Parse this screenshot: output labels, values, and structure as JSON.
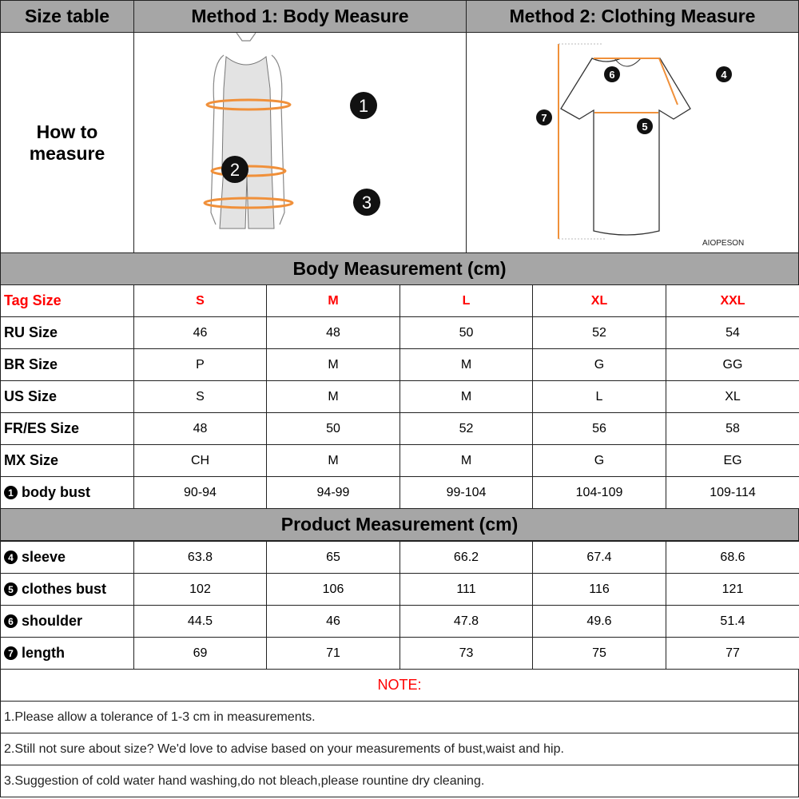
{
  "header": {
    "size_table": "Size table",
    "method1": "Method 1: Body  Measure",
    "method2": "Method 2: Clothing Measure"
  },
  "how_to_measure": "How to measure",
  "illustrations": {
    "body_markers": [
      "1",
      "2",
      "3"
    ],
    "clothing_markers": [
      "4",
      "5",
      "6",
      "7"
    ],
    "brand": "AIOPESON",
    "accent_color": "#f0903a"
  },
  "body_section": {
    "title": "Body Measurement (cm)",
    "tag_row": {
      "label": "Tag Size",
      "values": [
        "S",
        "M",
        "L",
        "XL",
        "XXL"
      ]
    },
    "rows": [
      {
        "label": "RU Size",
        "values": [
          "46",
          "48",
          "50",
          "52",
          "54"
        ]
      },
      {
        "label": "BR Size",
        "values": [
          "P",
          "M",
          "M",
          "G",
          "GG"
        ]
      },
      {
        "label": "US Size",
        "values": [
          "S",
          "M",
          "M",
          "L",
          "XL"
        ]
      },
      {
        "label": "FR/ES Size",
        "values": [
          "48",
          "50",
          "52",
          "56",
          "58"
        ]
      },
      {
        "label": "MX Size",
        "values": [
          "CH",
          "M",
          "M",
          "G",
          "EG"
        ]
      },
      {
        "marker": "1",
        "label": "body bust",
        "values": [
          "90-94",
          "94-99",
          "99-104",
          "104-109",
          "109-114"
        ]
      }
    ]
  },
  "product_section": {
    "title": "Product Measurement (cm)",
    "rows": [
      {
        "marker": "4",
        "label": "sleeve",
        "values": [
          "63.8",
          "65",
          "66.2",
          "67.4",
          "68.6"
        ]
      },
      {
        "marker": "5",
        "label": "clothes bust",
        "values": [
          "102",
          "106",
          "111",
          "116",
          "121"
        ]
      },
      {
        "marker": "6",
        "label": "shoulder",
        "values": [
          "44.5",
          "46",
          "47.8",
          "49.6",
          "51.4"
        ]
      },
      {
        "marker": "7",
        "label": "length",
        "values": [
          "69",
          "71",
          "73",
          "75",
          "77"
        ]
      }
    ]
  },
  "notes": {
    "title": "NOTE:",
    "items": [
      "1.Please allow a tolerance of 1-3 cm in measurements.",
      "2.Still not sure about size? We'd love to advise based on your measurements of bust,waist and hip.",
      "3.Suggestion of cold water hand washing,do not bleach,please rountine dry cleaning."
    ]
  },
  "colors": {
    "header_gray": "#a6a6a6",
    "tag_red": "#ff0000",
    "measure_orange": "#f0903a"
  }
}
